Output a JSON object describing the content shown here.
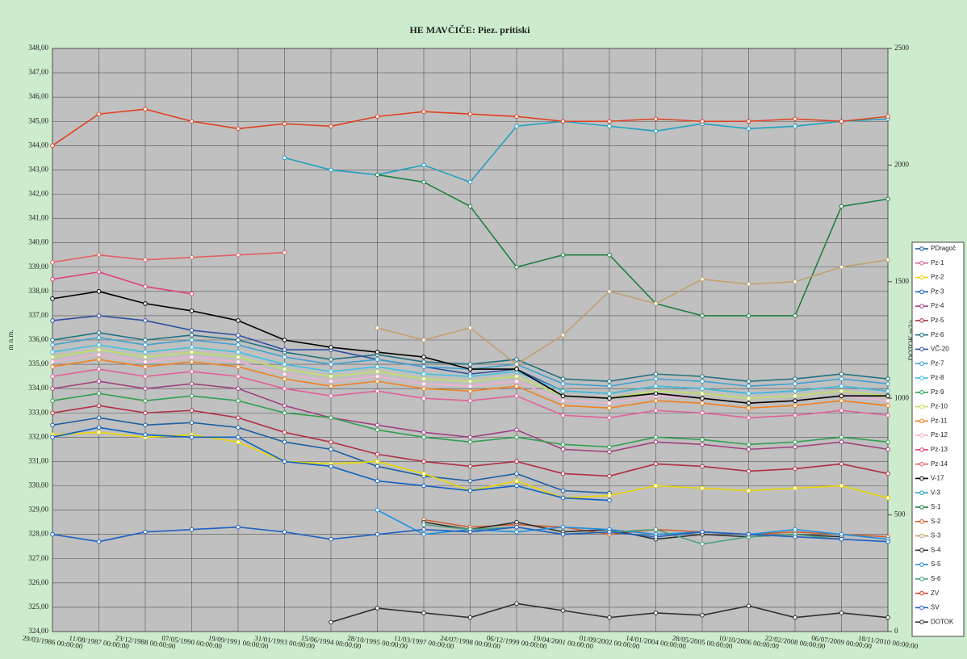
{
  "chart_data": {
    "type": "line",
    "title": "HE MAVČIČE: Piez. pritiski",
    "y_label": "m n.m.",
    "y2_label": "DOTOK m3/s",
    "categories": [
      "29/03/1986 00:00:00",
      "11/08/1987 00:00:00",
      "23/12/1988 00:00:00",
      "07/05/1990 00:00:00",
      "19/09/1991 00:00:00",
      "31/01/1993 00:00:00",
      "15/06/1994 00:00:00",
      "28/10/1995 00:00:00",
      "11/03/1997 00:00:00",
      "24/07/1998 00:00:00",
      "06/12/1999 00:00:00",
      "19/04/2001 00:00:00",
      "01/09/2002 00:00:00",
      "14/01/2004 00:00:00",
      "28/05/2005 00:00:00",
      "10/10/2006 00:00:00",
      "22/02/2008 00:00:00",
      "06/07/2009 00:00:00",
      "18/11/2010 00:00:00"
    ],
    "ylim": [
      324,
      348
    ],
    "yticks": [
      {
        "value": 324,
        "label": "324,00"
      },
      {
        "value": 325,
        "label": "325,00"
      },
      {
        "value": 326,
        "label": "326,00"
      },
      {
        "value": 327,
        "label": "327,00"
      },
      {
        "value": 328,
        "label": "328,00"
      },
      {
        "value": 329,
        "label": "329,00"
      },
      {
        "value": 330,
        "label": "330,00"
      },
      {
        "value": 331,
        "label": "331,00"
      },
      {
        "value": 332,
        "label": "332,00"
      },
      {
        "value": 333,
        "label": "333,00"
      },
      {
        "value": 334,
        "label": "334,00"
      },
      {
        "value": 335,
        "label": "335,00"
      },
      {
        "value": 336,
        "label": "336,00"
      },
      {
        "value": 337,
        "label": "337,00"
      },
      {
        "value": 338,
        "label": "338,00"
      },
      {
        "value": 339,
        "label": "339,00"
      },
      {
        "value": 340,
        "label": "340,00"
      },
      {
        "value": 341,
        "label": "341,00"
      },
      {
        "value": 342,
        "label": "342,00"
      },
      {
        "value": 343,
        "label": "343,00"
      },
      {
        "value": 344,
        "label": "344,00"
      },
      {
        "value": 345,
        "label": "345,00"
      },
      {
        "value": 346,
        "label": "346,00"
      },
      {
        "value": 347,
        "label": "347,00"
      },
      {
        "value": 348,
        "label": "348,00"
      }
    ],
    "y2lim": [
      0,
      2500
    ],
    "y2ticks": [
      0,
      500,
      1000,
      1500,
      2000,
      2500
    ],
    "grid": true,
    "legend": "right",
    "series": [
      {
        "name": "PDragoč",
        "color": "#1f5fa0",
        "values": [
          332.5,
          332.8,
          332.5,
          332.6,
          332.4,
          331.8,
          331.5,
          330.8,
          330.4,
          330.2,
          330.5,
          329.8,
          329.7,
          null,
          null,
          null,
          null,
          null,
          null
        ]
      },
      {
        "name": "Pz-1",
        "color": "#e0609a",
        "values": [
          334.5,
          334.8,
          334.5,
          334.7,
          334.5,
          334.0,
          333.7,
          333.9,
          333.6,
          333.5,
          333.7,
          332.9,
          332.8,
          333.1,
          333.0,
          332.8,
          332.9,
          333.1,
          332.9
        ]
      },
      {
        "name": "Pz-2",
        "color": "#e8d800",
        "values": [
          332.1,
          332.2,
          332.0,
          332.1,
          331.8,
          331.0,
          330.9,
          331.0,
          330.5,
          329.8,
          330.2,
          329.5,
          329.6,
          330.0,
          329.9,
          329.8,
          329.9,
          330.0,
          329.5
        ]
      },
      {
        "name": "Pz-3",
        "color": "#1060c0",
        "values": [
          332.0,
          332.4,
          332.1,
          332.0,
          332.0,
          331.0,
          330.8,
          330.2,
          330.0,
          329.8,
          330.0,
          329.5,
          329.4,
          null,
          null,
          null,
          null,
          null,
          null
        ]
      },
      {
        "name": "Pz-4",
        "color": "#a04080",
        "values": [
          334.0,
          334.3,
          334.0,
          334.2,
          334.0,
          333.3,
          332.8,
          332.5,
          332.2,
          332.0,
          332.3,
          331.5,
          331.4,
          331.8,
          331.7,
          331.5,
          331.6,
          331.8,
          331.5
        ]
      },
      {
        "name": "Pz-5",
        "color": "#b03040",
        "values": [
          333.0,
          333.3,
          333.0,
          333.1,
          332.8,
          332.2,
          331.8,
          331.3,
          331.0,
          330.8,
          331.0,
          330.5,
          330.4,
          330.9,
          330.8,
          330.6,
          330.7,
          330.9,
          330.5
        ]
      },
      {
        "name": "Pz-6",
        "color": "#207080",
        "values": [
          336.0,
          336.3,
          336.0,
          336.2,
          336.0,
          335.5,
          335.2,
          335.4,
          335.1,
          335.0,
          335.2,
          334.4,
          334.3,
          334.6,
          334.5,
          334.3,
          334.4,
          334.6,
          334.4
        ]
      },
      {
        "name": "VČ-20",
        "color": "#3050a0",
        "values": [
          336.8,
          337.0,
          336.8,
          336.4,
          336.2,
          335.6,
          335.6,
          335.2,
          334.9,
          334.6,
          334.8,
          333.9,
          333.8,
          334.1,
          334.0,
          333.8,
          333.9,
          334.1,
          333.9
        ]
      },
      {
        "name": "Pz-7",
        "color": "#40a0d0",
        "values": [
          335.8,
          336.1,
          335.8,
          336.0,
          335.8,
          335.3,
          335.0,
          335.2,
          334.9,
          334.8,
          335.0,
          334.2,
          334.1,
          334.4,
          334.3,
          334.1,
          334.2,
          334.4,
          334.2
        ]
      },
      {
        "name": "Pz-8",
        "color": "#40c0e0",
        "values": [
          335.5,
          335.8,
          335.5,
          335.7,
          335.5,
          335.0,
          334.7,
          334.9,
          334.6,
          334.5,
          334.7,
          333.9,
          333.8,
          334.1,
          334.0,
          333.8,
          333.9,
          334.1,
          333.9
        ]
      },
      {
        "name": "Pz-9",
        "color": "#30a050",
        "values": [
          333.5,
          333.8,
          333.5,
          333.7,
          333.5,
          333.0,
          332.8,
          332.3,
          332.0,
          331.8,
          332.0,
          331.7,
          331.6,
          332.0,
          331.9,
          331.7,
          331.8,
          332.0,
          331.8
        ]
      },
      {
        "name": "Pz-10",
        "color": "#c0e060",
        "values": [
          335.3,
          335.6,
          335.3,
          335.5,
          335.3,
          334.8,
          334.5,
          334.7,
          334.4,
          334.3,
          334.5,
          333.7,
          333.6,
          333.9,
          333.8,
          333.6,
          333.7,
          333.9,
          333.7
        ]
      },
      {
        "name": "Pz-11",
        "color": "#f08020",
        "values": [
          334.9,
          335.2,
          334.9,
          335.1,
          334.9,
          334.4,
          334.1,
          334.3,
          334.0,
          333.9,
          334.1,
          333.3,
          333.2,
          333.5,
          333.4,
          333.2,
          333.3,
          333.5,
          333.3
        ]
      },
      {
        "name": "Pz-12",
        "color": "#f0b0d0",
        "values": [
          335.1,
          335.4,
          335.1,
          335.3,
          335.1,
          334.6,
          334.3,
          334.5,
          334.2,
          334.1,
          334.3,
          333.5,
          333.4,
          333.7,
          333.6,
          333.4,
          333.5,
          333.7,
          333.5
        ]
      },
      {
        "name": "Pz-13",
        "color": "#e04080",
        "values": [
          338.5,
          338.8,
          338.2,
          337.9,
          null,
          null,
          null,
          null,
          null,
          null,
          null,
          null,
          null,
          null,
          null,
          null,
          null,
          null,
          null
        ]
      },
      {
        "name": "Pz-14",
        "color": "#e06060",
        "values": [
          339.2,
          339.5,
          339.3,
          339.4,
          339.5,
          339.6,
          null,
          null,
          null,
          null,
          null,
          null,
          null,
          null,
          null,
          null,
          null,
          null,
          null
        ]
      },
      {
        "name": "V-17",
        "color": "#000000",
        "values": [
          337.7,
          338.0,
          337.5,
          337.2,
          336.8,
          336.0,
          335.7,
          335.5,
          335.3,
          334.8,
          334.8,
          333.7,
          333.6,
          333.8,
          333.6,
          333.4,
          333.5,
          333.7,
          333.7
        ]
      },
      {
        "name": "V-3",
        "color": "#20a0c0",
        "values": [
          null,
          null,
          null,
          null,
          null,
          343.5,
          343.0,
          342.8,
          343.2,
          342.5,
          344.8,
          345.0,
          344.8,
          344.6,
          344.9,
          344.7,
          344.8,
          345.0,
          345.1
        ]
      },
      {
        "name": "S-1",
        "color": "#208040",
        "values": [
          null,
          null,
          null,
          null,
          null,
          null,
          null,
          342.8,
          342.5,
          341.5,
          339.0,
          339.5,
          339.5,
          337.5,
          337.0,
          337.0,
          337.0,
          341.5,
          341.8
        ]
      },
      {
        "name": "S-2",
        "color": "#d06030",
        "values": [
          null,
          null,
          null,
          null,
          null,
          null,
          null,
          null,
          328.6,
          328.3,
          328.4,
          328.3,
          328.0,
          328.2,
          328.1,
          328.0,
          328.1,
          328.0,
          327.9
        ]
      },
      {
        "name": "S-3",
        "color": "#c0a070",
        "values": [
          null,
          null,
          null,
          null,
          null,
          null,
          null,
          336.5,
          336.0,
          336.5,
          335.0,
          336.2,
          338.0,
          337.5,
          338.5,
          338.3,
          338.4,
          339.0,
          339.3
        ]
      },
      {
        "name": "S-4",
        "color": "#303030",
        "values": [
          null,
          null,
          null,
          null,
          null,
          null,
          null,
          null,
          328.5,
          328.2,
          328.5,
          328.1,
          328.2,
          327.8,
          328.0,
          327.9,
          328.0,
          327.9,
          null
        ]
      },
      {
        "name": "S-5",
        "color": "#2090e0",
        "values": [
          null,
          null,
          null,
          null,
          null,
          null,
          null,
          329.0,
          328.0,
          328.2,
          328.1,
          328.3,
          328.2,
          328.0,
          328.1,
          328.0,
          328.2,
          328.0,
          327.8
        ]
      },
      {
        "name": "S-6",
        "color": "#50a080",
        "values": [
          null,
          null,
          null,
          null,
          null,
          null,
          null,
          null,
          328.4,
          328.2,
          328.3,
          328.0,
          328.1,
          328.2,
          327.6,
          327.9,
          328.0,
          327.8,
          null
        ]
      },
      {
        "name": "ZV",
        "color": "#e04020",
        "values": [
          344.0,
          345.3,
          345.5,
          345.0,
          344.7,
          344.9,
          344.8,
          345.2,
          345.4,
          345.3,
          345.2,
          345.0,
          345.0,
          345.1,
          345.0,
          345.0,
          345.1,
          345.0,
          345.2
        ]
      },
      {
        "name": "SV",
        "color": "#2060c0",
        "values": [
          328.0,
          327.7,
          328.1,
          328.2,
          328.3,
          328.1,
          327.8,
          328.0,
          328.2,
          328.1,
          328.3,
          328.0,
          328.1,
          327.9,
          328.1,
          328.0,
          327.9,
          327.8,
          327.7
        ]
      },
      {
        "name": "DOTOK",
        "color": "#303030",
        "axis": "y2",
        "values": [
          null,
          null,
          null,
          null,
          null,
          null,
          40,
          100,
          80,
          60,
          120,
          90,
          60,
          80,
          70,
          110,
          60,
          80,
          60
        ]
      }
    ]
  }
}
